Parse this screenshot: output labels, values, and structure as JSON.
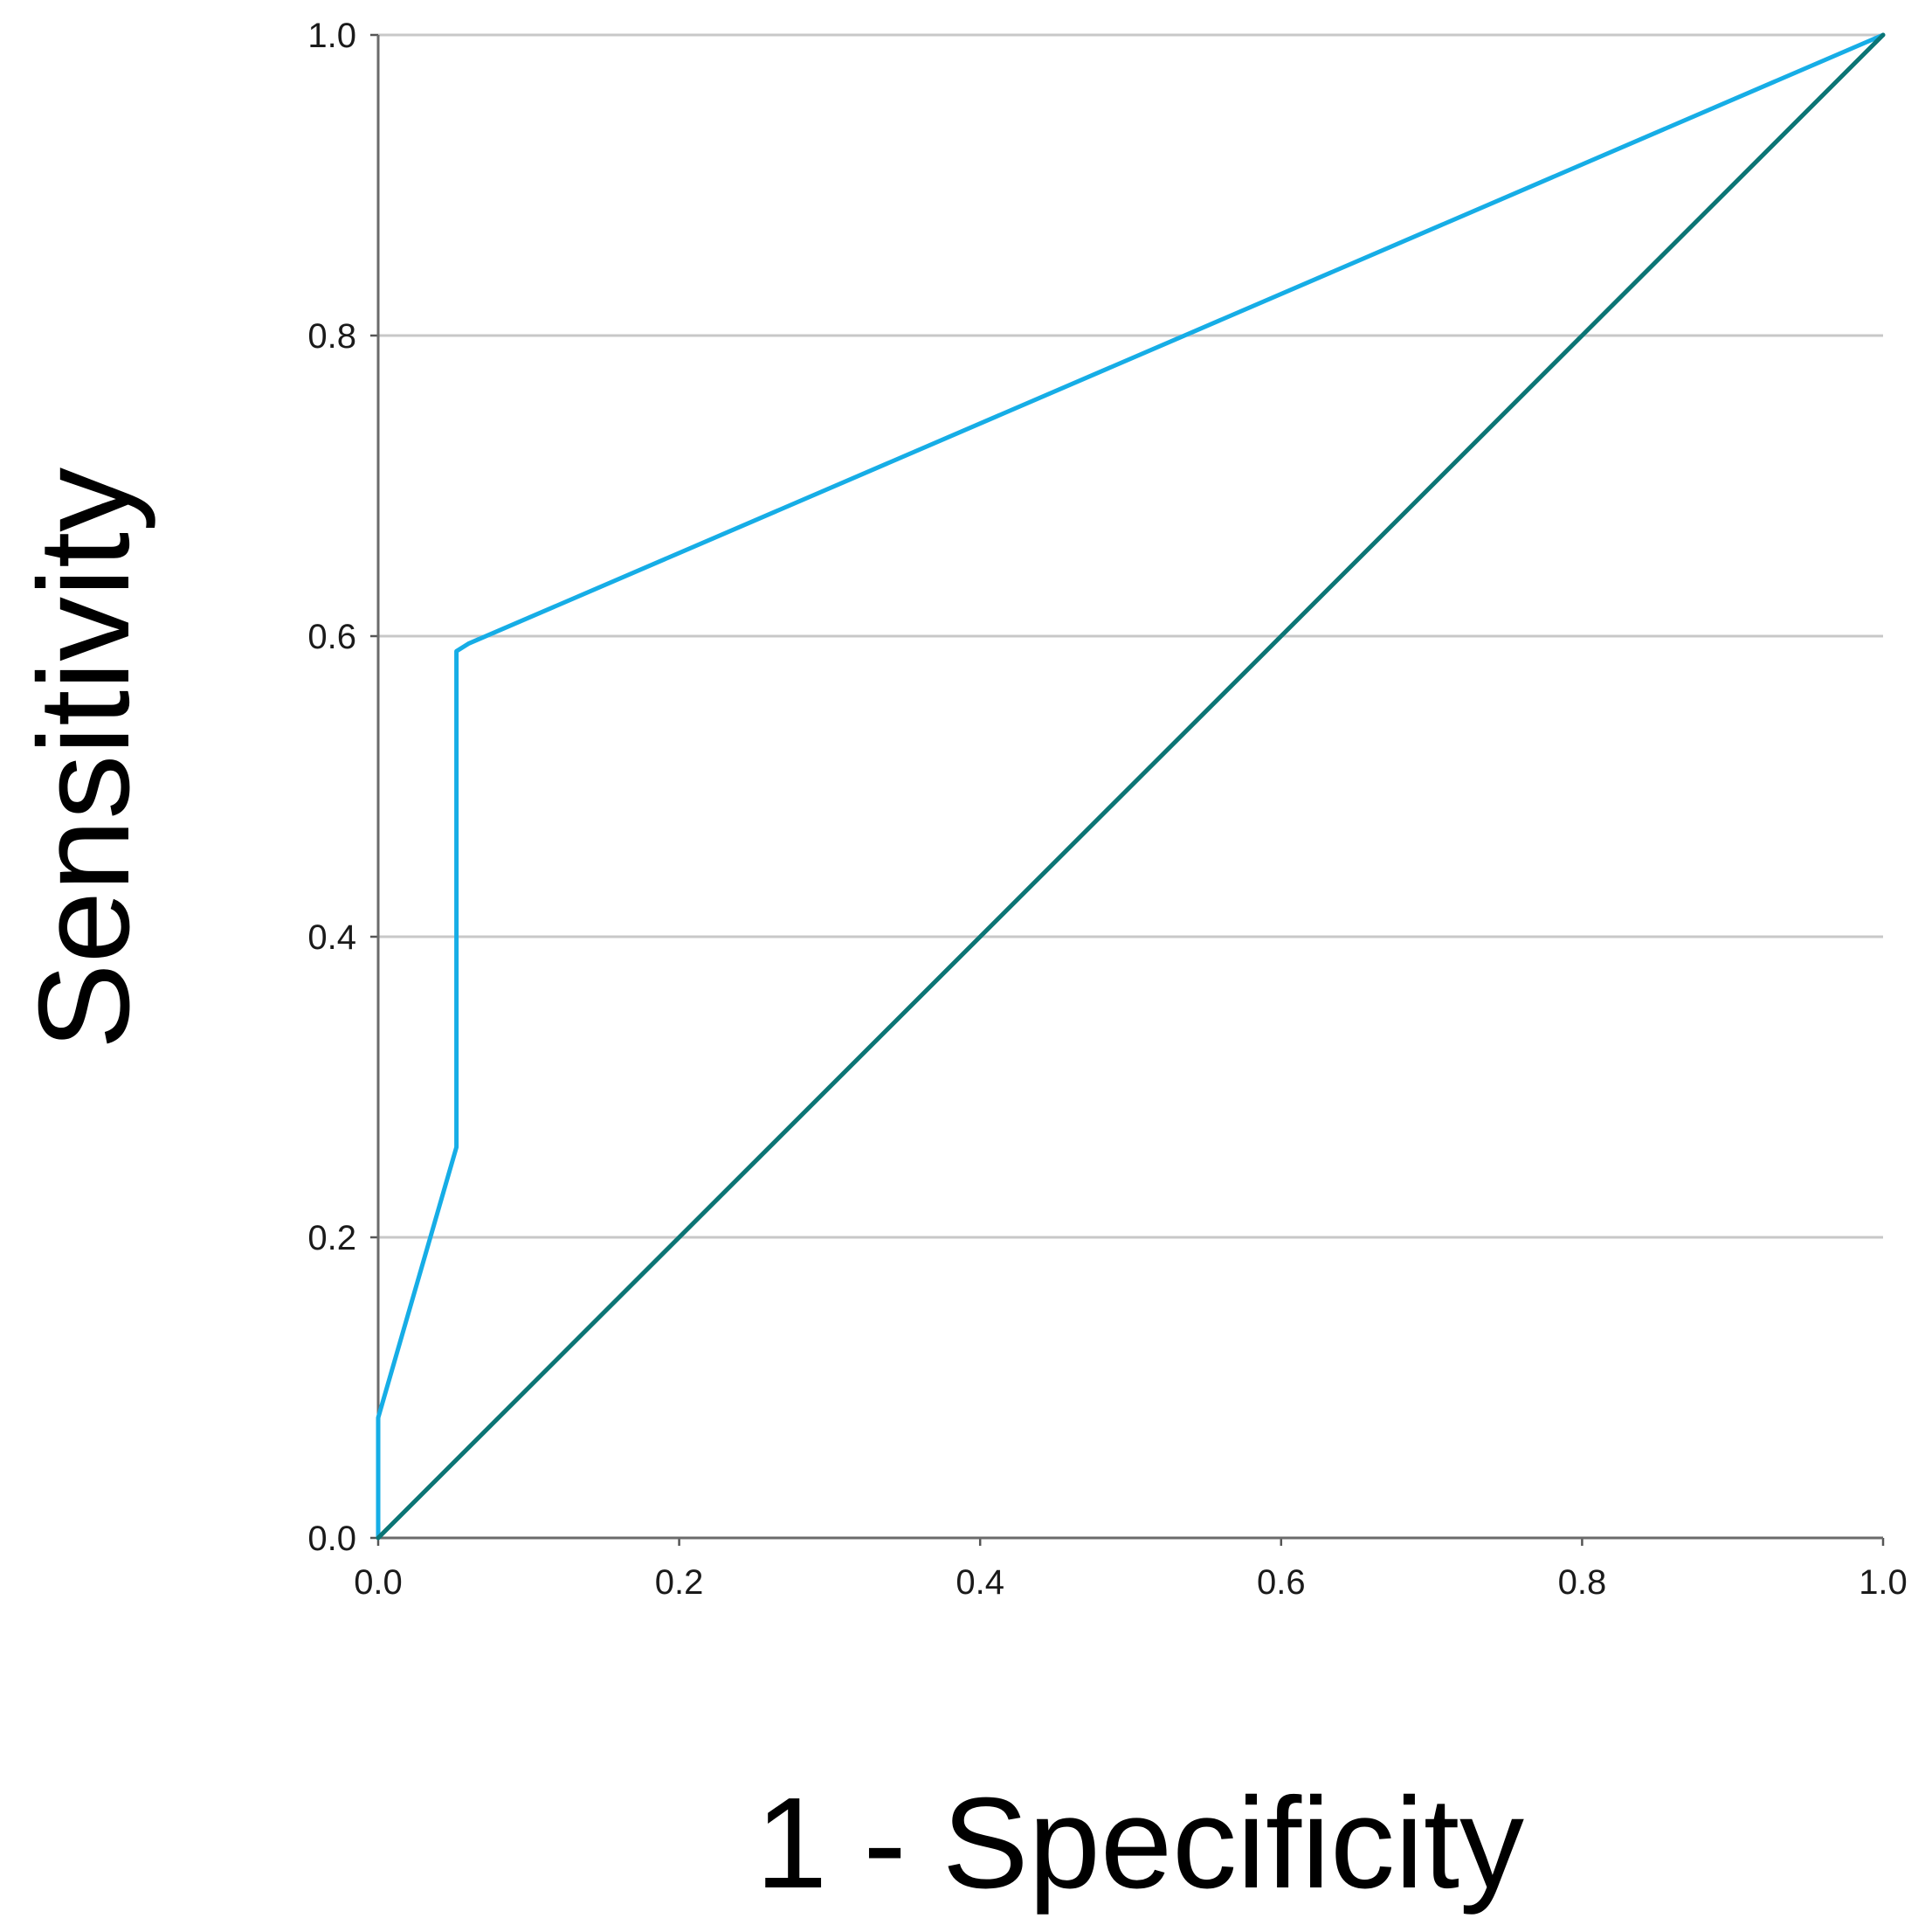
{
  "chart_data": {
    "type": "line",
    "title": "",
    "xlabel": "1 - Specificity",
    "ylabel": "Sensitivity",
    "xlim": [
      0.0,
      1.0
    ],
    "ylim": [
      0.0,
      1.0
    ],
    "x_ticks": [
      "0.0",
      "0.2",
      "0.4",
      "0.6",
      "0.8",
      "1.0"
    ],
    "y_ticks": [
      "0.0",
      "0.2",
      "0.4",
      "0.6",
      "0.8",
      "1.0"
    ],
    "grid": "horizontal",
    "legend": "none",
    "series": [
      {
        "role": "roc-curve",
        "color": "#16ade6",
        "x": [
          0.0,
          0.0,
          0.052,
          0.052,
          0.06,
          1.0
        ],
        "y": [
          0.0,
          0.08,
          0.26,
          0.59,
          0.595,
          1.0
        ]
      },
      {
        "role": "reference-line",
        "color": "#0b7575",
        "x": [
          0.0,
          1.0
        ],
        "y": [
          0.0,
          1.0
        ]
      }
    ]
  }
}
